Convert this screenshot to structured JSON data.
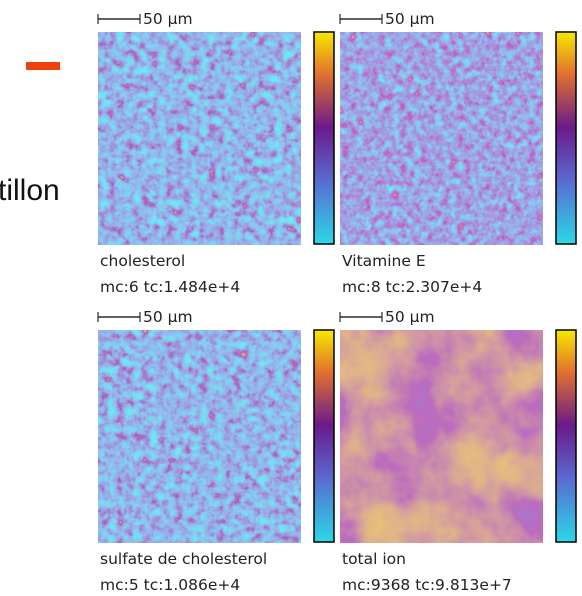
{
  "header": {
    "partial_title": "tillon"
  },
  "panels": [
    {
      "scale_label": "50 µm",
      "name": "cholesterol",
      "stats": "mc:6 tc:1.484e+4"
    },
    {
      "scale_label": "50 µm",
      "name": "Vitamine E",
      "stats": "mc:8 tc:2.307e+4"
    },
    {
      "scale_label": "50 µm",
      "name": "sulfate de cholesterol",
      "stats": "mc:5 tc:1.086e+4"
    },
    {
      "scale_label": "50 µm",
      "name": "total ion",
      "stats": "mc:9368 tc:9.813e+7"
    }
  ]
}
